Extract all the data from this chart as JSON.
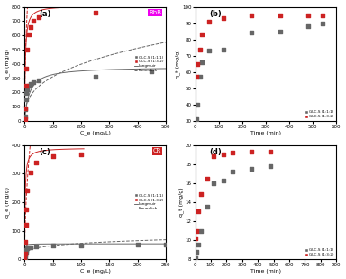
{
  "panel_a": {
    "label": "(a)",
    "dye_label": "RhB",
    "dye_color": "#ee00ee",
    "dye_bg": "#ee88ee",
    "xlabel": "C_e (mg/L)",
    "ylabel": "q_e (mg/g)",
    "xlim": [
      0,
      500
    ],
    "ylim": [
      0,
      800
    ],
    "xticks": [
      0,
      100,
      200,
      300,
      400,
      500
    ],
    "yticks": [
      0,
      100,
      200,
      300,
      400,
      500,
      600,
      700,
      800
    ],
    "series1_label": "GLC-S (1:1:1)",
    "series2_label": "GLC-S (1:3:2)",
    "series1_color": "#666666",
    "series2_color": "#cc2222",
    "series1_x": [
      1,
      2,
      4,
      7,
      10,
      15,
      20,
      30,
      50,
      250,
      450
    ],
    "series1_y": [
      30,
      80,
      150,
      195,
      220,
      245,
      260,
      275,
      285,
      310,
      350
    ],
    "series2_x": [
      1,
      2,
      4,
      7,
      10,
      15,
      20,
      30,
      50,
      250
    ],
    "series2_y": [
      15,
      90,
      250,
      370,
      500,
      610,
      660,
      700,
      730,
      760
    ],
    "lang1_qmax": 380,
    "lang1_KL": 0.06,
    "freund1_Kf": 60,
    "freund1_n": 2.8,
    "lang2_qmax": 810,
    "lang2_KL": 0.4,
    "freund2_Kf": 280,
    "freund2_n": 2.2
  },
  "panel_b": {
    "label": "(b)",
    "xlabel": "Time (min)",
    "ylabel": "q_t (mg/g)",
    "xlim": [
      0,
      600
    ],
    "ylim": [
      30,
      100
    ],
    "xticks": [
      0,
      100,
      200,
      300,
      400,
      500,
      600
    ],
    "yticks": [
      30,
      40,
      50,
      60,
      70,
      80,
      90,
      100
    ],
    "series1_label": "GLC-S (1:1:1)",
    "series2_label": "GLC-S (1:3:2)",
    "series1_color": "#666666",
    "series2_color": "#cc2222",
    "series1_x": [
      5,
      10,
      20,
      30,
      60,
      120,
      240,
      360,
      480,
      540
    ],
    "series1_y": [
      31,
      40,
      57,
      66,
      73,
      74,
      84,
      85,
      88,
      90
    ],
    "series2_x": [
      5,
      10,
      20,
      30,
      60,
      120,
      240,
      360,
      480,
      540
    ],
    "series2_y": [
      57,
      65,
      74,
      83,
      91,
      93,
      95,
      95,
      95,
      95
    ]
  },
  "panel_c": {
    "label": "(c)",
    "dye_label": "CR",
    "dye_color": "#cc2222",
    "dye_bg": "#ee8888",
    "xlabel": "C_e (mg/L)",
    "ylabel": "q_e (mg/g)",
    "xlim": [
      0,
      250
    ],
    "ylim": [
      0,
      400
    ],
    "xticks": [
      0,
      50,
      100,
      150,
      200,
      250
    ],
    "yticks": [
      0,
      100,
      200,
      300,
      400
    ],
    "series1_label": "GLC-S (1:1:1)",
    "series2_label": "GLC-S (1:3:2)",
    "series1_color": "#666666",
    "series2_color": "#cc2222",
    "series1_x": [
      0.3,
      0.5,
      1,
      2,
      3,
      5,
      10,
      20,
      50,
      100,
      200,
      250
    ],
    "series1_y": [
      3,
      8,
      15,
      25,
      32,
      38,
      42,
      45,
      47,
      49,
      51,
      52
    ],
    "series2_x": [
      0.3,
      0.5,
      1,
      2,
      3,
      5,
      10,
      20,
      50,
      100
    ],
    "series2_y": [
      5,
      20,
      60,
      120,
      175,
      240,
      305,
      340,
      360,
      368
    ],
    "lang1_qmax": 54,
    "lang1_KL": 3.0,
    "freund1_Kf": 20,
    "freund1_n": 4.5,
    "lang2_qmax": 390,
    "lang2_KL": 1.2,
    "freund2_Kf": 120,
    "freund2_n": 1.9
  },
  "panel_d": {
    "label": "(d)",
    "xlabel": "Time (min)",
    "ylabel": "q_t (mg/g)",
    "xlim": [
      0,
      900
    ],
    "ylim": [
      8,
      20
    ],
    "xticks": [
      0,
      100,
      200,
      300,
      400,
      500,
      600,
      700,
      800,
      900
    ],
    "yticks": [
      8,
      10,
      12,
      14,
      16,
      18,
      20
    ],
    "series1_label": "GLC-S (1:1:1)",
    "series2_label": "GLC-S (1:3:2)",
    "series1_color": "#666666",
    "series2_color": "#cc2222",
    "series1_x": [
      5,
      10,
      20,
      40,
      80,
      120,
      180,
      240,
      360,
      480
    ],
    "series1_y": [
      8.2,
      8.8,
      9.5,
      11.0,
      13.5,
      16.0,
      16.3,
      17.2,
      17.5,
      17.8
    ],
    "series2_x": [
      5,
      10,
      20,
      40,
      80,
      120,
      180,
      240,
      360,
      480
    ],
    "series2_y": [
      10.2,
      11.0,
      13.0,
      14.8,
      16.5,
      18.8,
      19.0,
      19.2,
      19.3,
      19.3
    ]
  },
  "fig_background": "#ffffff"
}
